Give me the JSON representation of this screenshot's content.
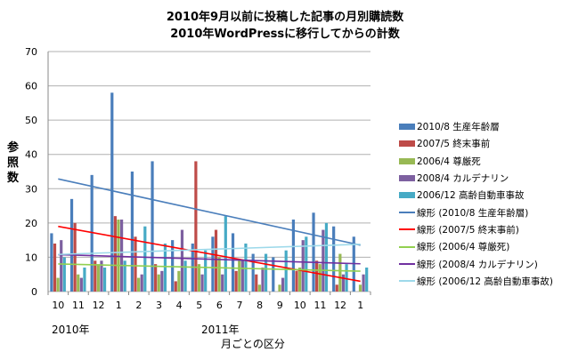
{
  "chart_data": {
    "type": "bar",
    "title": "2010年9月以前に投稿した記事の月別購読数",
    "subtitle": "2010年WordPressに移行してからの計数",
    "ylabel": "参照数",
    "xlabel": "月ごとの区分",
    "year_labels": [
      "2010年",
      "2011年"
    ],
    "ylim": [
      0,
      70
    ],
    "yticks": [
      0,
      10,
      20,
      30,
      40,
      50,
      60,
      70
    ],
    "categories": [
      "10",
      "11",
      "12",
      "1",
      "2",
      "3",
      "4",
      "5",
      "6",
      "7",
      "8",
      "9",
      "10",
      "11",
      "12",
      "1"
    ],
    "series": [
      {
        "name": "2010/8 生産年齢層",
        "color": "#4a7ebb",
        "values": [
          17,
          27,
          34,
          58,
          35,
          38,
          15,
          14,
          16,
          17,
          11,
          10,
          21,
          23,
          19,
          16
        ]
      },
      {
        "name": "2007/5 終末事前",
        "color": "#be4b48",
        "values": [
          14,
          20,
          9,
          22,
          16,
          8,
          3,
          38,
          18,
          6,
          5,
          0,
          6,
          9,
          2,
          0
        ]
      },
      {
        "name": "2006/4 尊厳死",
        "color": "#98b954",
        "values": [
          4,
          5,
          8,
          21,
          4,
          5,
          6,
          8,
          10,
          9,
          2,
          2,
          7,
          8,
          11,
          2
        ]
      },
      {
        "name": "2008/4 カルデナリン",
        "color": "#7d60a0",
        "values": [
          15,
          4,
          9,
          21,
          5,
          6,
          18,
          5,
          5,
          9,
          7,
          4,
          15,
          18,
          5,
          5
        ]
      },
      {
        "name": "2006/12 高齢自動車事故",
        "color": "#46aac5",
        "values": [
          10,
          7,
          7,
          9,
          19,
          14,
          9,
          12,
          22,
          14,
          11,
          12,
          16,
          20,
          8,
          7
        ]
      }
    ],
    "trendlines": [
      {
        "name": "線形 (2010/8 生産年齢層)",
        "color": "#4a7ebb"
      },
      {
        "name": "線形 (2007/5 終末事前)",
        "color": "#ff0000"
      },
      {
        "name": "線形 (2006/4 尊厳死)",
        "color": "#92d050"
      },
      {
        "name": "線形 (2008/4 カルデナリン)",
        "color": "#7030a0"
      },
      {
        "name": "線形 (2006/12 高齢自動車事故)",
        "color": "#9dd9ea"
      }
    ],
    "grid": true,
    "legend": "right"
  }
}
